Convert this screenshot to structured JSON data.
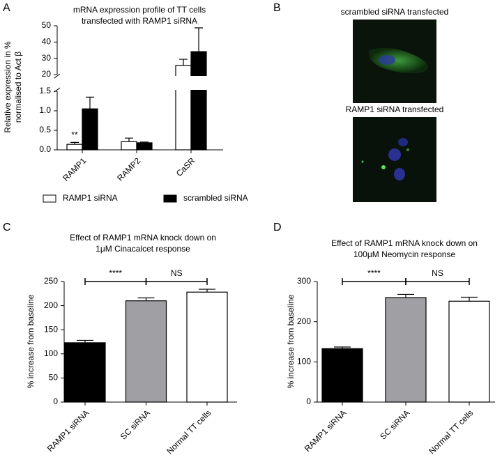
{
  "panel_labels": [
    "A",
    "B",
    "C",
    "D"
  ],
  "chart_data": [
    {
      "type": "bar",
      "title": [
        "mRNA expression profile of TT cells",
        "transfected with RAMP1 siRNA"
      ],
      "y_label": [
        "Relative expression in %",
        "normalised to Act β"
      ],
      "categories": [
        "RAMP1",
        "RAMP2",
        "CaSR"
      ],
      "series": [
        {
          "name": "RAMP1 siRNA",
          "color": "#ffffff",
          "values": [
            0.14,
            0.21,
            25.6
          ],
          "errors": [
            0.05,
            0.09,
            3.8
          ]
        },
        {
          "name": "scrambled siRNA",
          "color": "#000000",
          "values": [
            1.05,
            0.18,
            34.1
          ],
          "errors": [
            0.3,
            0.02,
            14.6
          ]
        }
      ],
      "ylim": [
        0,
        50
      ],
      "ybreak": [
        1.5,
        20
      ],
      "yticks": [
        {
          "value": 0,
          "label": "0.0"
        },
        0.5,
        {
          "value": 1,
          "label": "1.0"
        },
        1.5,
        20,
        30,
        40,
        50
      ],
      "annotations": [
        {
          "text": "**",
          "category": 0
        }
      ],
      "legend": "bottom"
    },
    {
      "type": "bar",
      "title": [
        "Effect of RAMP1 mRNA knock down on",
        "1μM Cinacalcet response"
      ],
      "y_label": [
        "% increase from baseline"
      ],
      "categories": [
        "RAMP1 siRNA",
        "SC siRNA",
        "Normal TT cells"
      ],
      "values": [
        123,
        210,
        228
      ],
      "errors": [
        5,
        6,
        6
      ],
      "colors": [
        "#000000",
        "#a0a0a4",
        "#ffffff"
      ],
      "ylim": [
        0,
        250
      ],
      "yticks": [
        0,
        50,
        100,
        150,
        200,
        250
      ],
      "significance": [
        {
          "from": 0,
          "to": 1,
          "text": "****"
        },
        {
          "from": 1,
          "to": 2,
          "text": "NS"
        }
      ]
    },
    {
      "type": "bar",
      "title": [
        "Effect of RAMP1 mRNA knock down on",
        "100μM Neomycin response"
      ],
      "y_label": [
        "% increase from baseline"
      ],
      "categories": [
        "RAMP1 siRNA",
        "SC siRNA",
        "Normal TT cells"
      ],
      "values": [
        133,
        260,
        251
      ],
      "errors": [
        4,
        8,
        10
      ],
      "colors": [
        "#000000",
        "#a0a0a4",
        "#ffffff"
      ],
      "ylim": [
        0,
        300
      ],
      "yticks": [
        0,
        100,
        200,
        300
      ],
      "significance": [
        {
          "from": 0,
          "to": 1,
          "text": "****"
        },
        {
          "from": 1,
          "to": 2,
          "text": "NS"
        }
      ]
    }
  ],
  "images": [
    {
      "caption": "scrambled siRNA transfected"
    },
    {
      "caption": "RAMP1 siRNA transfected"
    }
  ]
}
